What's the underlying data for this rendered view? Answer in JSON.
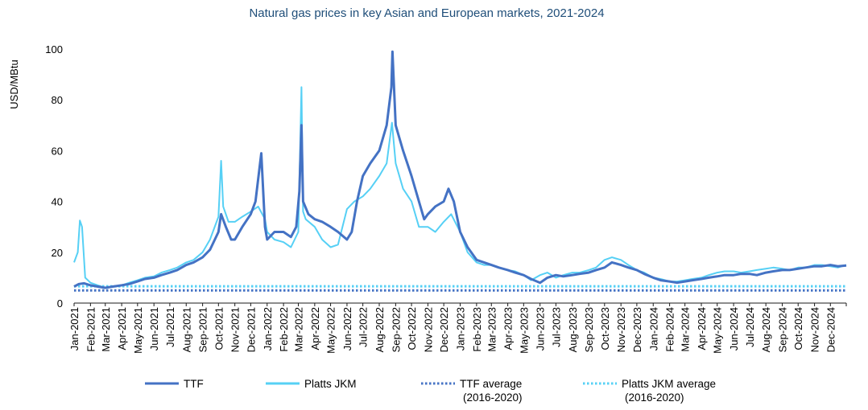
{
  "chart_data": {
    "type": "line",
    "title": "Natural gas prices in key Asian and European markets, 2021-2024",
    "ylabel": "USD/MBtu",
    "xlabel": "",
    "ylim": [
      0,
      100
    ],
    "yticks": [
      0,
      20,
      40,
      60,
      80,
      100
    ],
    "grid": false,
    "legend_position": "bottom",
    "x_tick_labels": [
      "Jan-2021",
      "Feb-2021",
      "Mar-2021",
      "Apr-2021",
      "May-2021",
      "Jun-2021",
      "Jul-2021",
      "Aug-2021",
      "Sep-2021",
      "Oct-2021",
      "Nov-2021",
      "Dec-2021",
      "Jan-2022",
      "Feb-2022",
      "Mar-2022",
      "Apr-2022",
      "May-2022",
      "Jun-2022",
      "Jul-2022",
      "Aug-2022",
      "Sep-2022",
      "Oct-2022",
      "Nov-2022",
      "Dec-2022",
      "Jan-2023",
      "Feb-2023",
      "Mar-2023",
      "Apr-2023",
      "May-2023",
      "Jun-2023",
      "Jul-2023",
      "Aug-2023",
      "Sep-2023",
      "Oct-2023",
      "Nov-2023",
      "Dec-2023",
      "Jan-2024",
      "Feb-2024",
      "Mar-2024",
      "Apr-2024",
      "May-2024",
      "Jun-2024",
      "Jul-2024",
      "Aug-2024",
      "Sep-2024",
      "Oct-2024",
      "Nov-2024",
      "Dec-2024"
    ],
    "series": [
      {
        "name": "TTF",
        "color": "#4472c4",
        "style": "solid",
        "x": [
          "2021-01-01",
          "2021-01-10",
          "2021-01-20",
          "2021-02-01",
          "2021-02-15",
          "2021-03-01",
          "2021-03-15",
          "2021-04-01",
          "2021-04-15",
          "2021-05-01",
          "2021-05-15",
          "2021-06-01",
          "2021-06-15",
          "2021-07-01",
          "2021-07-15",
          "2021-08-01",
          "2021-08-15",
          "2021-09-01",
          "2021-09-15",
          "2021-10-01",
          "2021-10-06",
          "2021-10-15",
          "2021-10-25",
          "2021-11-01",
          "2021-11-15",
          "2021-12-01",
          "2021-12-10",
          "2021-12-21",
          "2021-12-28",
          "2022-01-01",
          "2022-01-15",
          "2022-02-01",
          "2022-02-15",
          "2022-02-25",
          "2022-03-03",
          "2022-03-07",
          "2022-03-10",
          "2022-03-20",
          "2022-04-01",
          "2022-04-15",
          "2022-05-01",
          "2022-05-15",
          "2022-06-01",
          "2022-06-10",
          "2022-06-20",
          "2022-07-01",
          "2022-07-15",
          "2022-08-01",
          "2022-08-15",
          "2022-08-24",
          "2022-08-26",
          "2022-09-01",
          "2022-09-15",
          "2022-10-01",
          "2022-10-15",
          "2022-10-25",
          "2022-11-01",
          "2022-11-15",
          "2022-12-01",
          "2022-12-10",
          "2022-12-20",
          "2023-01-01",
          "2023-01-15",
          "2023-02-01",
          "2023-02-15",
          "2023-03-01",
          "2023-03-15",
          "2023-04-01",
          "2023-04-15",
          "2023-05-01",
          "2023-05-15",
          "2023-06-01",
          "2023-06-15",
          "2023-07-01",
          "2023-07-15",
          "2023-08-01",
          "2023-08-15",
          "2023-09-01",
          "2023-09-15",
          "2023-10-01",
          "2023-10-15",
          "2023-11-01",
          "2023-11-15",
          "2023-12-01",
          "2023-12-15",
          "2024-01-01",
          "2024-01-15",
          "2024-02-01",
          "2024-02-15",
          "2024-03-01",
          "2024-03-15",
          "2024-04-01",
          "2024-04-15",
          "2024-05-01",
          "2024-05-15",
          "2024-06-01",
          "2024-06-15",
          "2024-07-01",
          "2024-07-15",
          "2024-08-01",
          "2024-08-15",
          "2024-09-01",
          "2024-09-15",
          "2024-10-01",
          "2024-10-15",
          "2024-11-01",
          "2024-11-15",
          "2024-12-01",
          "2024-12-15",
          "2024-12-31"
        ],
        "y": [
          6.5,
          7.5,
          7.8,
          7.0,
          6.5,
          6.0,
          6.5,
          7.0,
          7.5,
          8.5,
          9.5,
          10.0,
          11.0,
          12.0,
          13.0,
          15.0,
          16.0,
          18.0,
          21.0,
          28.0,
          35.0,
          30.0,
          25.0,
          25.0,
          30.0,
          35.0,
          40.0,
          59.0,
          30.0,
          25.0,
          28.0,
          28.0,
          26.0,
          30.0,
          44.0,
          70.0,
          40.0,
          35.0,
          33.0,
          32.0,
          30.0,
          28.0,
          25.0,
          28.0,
          40.0,
          50.0,
          55.0,
          60.0,
          70.0,
          85.0,
          99.0,
          70.0,
          60.0,
          50.0,
          40.0,
          33.0,
          35.0,
          38.0,
          40.0,
          45.0,
          40.0,
          28.0,
          22.0,
          17.0,
          16.0,
          15.0,
          14.0,
          13.0,
          12.0,
          11.0,
          9.5,
          8.0,
          10.0,
          11.0,
          10.5,
          11.0,
          11.5,
          12.0,
          13.0,
          14.0,
          16.0,
          15.0,
          14.0,
          13.0,
          11.5,
          10.0,
          9.0,
          8.5,
          8.0,
          8.5,
          9.0,
          9.5,
          10.0,
          10.5,
          11.0,
          11.0,
          11.5,
          11.5,
          11.0,
          12.0,
          12.5,
          13.0,
          13.0,
          13.5,
          14.0,
          14.5,
          14.5,
          15.0,
          14.5,
          14.8
        ]
      },
      {
        "name": "Platts JKM",
        "color": "#56d0f5",
        "style": "solid",
        "x": [
          "2021-01-01",
          "2021-01-08",
          "2021-01-12",
          "2021-01-16",
          "2021-01-22",
          "2021-02-01",
          "2021-02-15",
          "2021-03-01",
          "2021-03-15",
          "2021-04-01",
          "2021-04-15",
          "2021-05-01",
          "2021-05-15",
          "2021-06-01",
          "2021-06-15",
          "2021-07-01",
          "2021-07-15",
          "2021-08-01",
          "2021-08-15",
          "2021-09-01",
          "2021-09-15",
          "2021-10-01",
          "2021-10-06",
          "2021-10-10",
          "2021-10-20",
          "2021-11-01",
          "2021-11-15",
          "2021-12-01",
          "2021-12-15",
          "2021-12-28",
          "2022-01-01",
          "2022-01-15",
          "2022-02-01",
          "2022-02-15",
          "2022-03-01",
          "2022-03-07",
          "2022-03-10",
          "2022-03-15",
          "2022-04-01",
          "2022-04-15",
          "2022-05-01",
          "2022-05-15",
          "2022-06-01",
          "2022-06-15",
          "2022-07-01",
          "2022-07-15",
          "2022-08-01",
          "2022-08-15",
          "2022-08-25",
          "2022-09-01",
          "2022-09-15",
          "2022-10-01",
          "2022-10-15",
          "2022-11-01",
          "2022-11-15",
          "2022-12-01",
          "2022-12-15",
          "2023-01-01",
          "2023-01-15",
          "2023-02-01",
          "2023-02-15",
          "2023-03-01",
          "2023-03-15",
          "2023-04-01",
          "2023-04-15",
          "2023-05-01",
          "2023-05-15",
          "2023-06-01",
          "2023-06-15",
          "2023-07-01",
          "2023-07-15",
          "2023-08-01",
          "2023-08-15",
          "2023-09-01",
          "2023-09-15",
          "2023-10-01",
          "2023-10-15",
          "2023-11-01",
          "2023-11-15",
          "2023-12-01",
          "2023-12-15",
          "2024-01-01",
          "2024-01-15",
          "2024-02-01",
          "2024-02-15",
          "2024-03-01",
          "2024-03-15",
          "2024-04-01",
          "2024-04-15",
          "2024-05-01",
          "2024-05-15",
          "2024-06-01",
          "2024-06-15",
          "2024-07-01",
          "2024-07-15",
          "2024-08-01",
          "2024-08-15",
          "2024-09-01",
          "2024-09-15",
          "2024-10-01",
          "2024-10-15",
          "2024-11-01",
          "2024-11-15",
          "2024-12-01",
          "2024-12-15",
          "2024-12-31"
        ],
        "y": [
          16.0,
          20.0,
          32.5,
          30.0,
          10.0,
          8.0,
          7.0,
          6.0,
          6.5,
          7.0,
          8.0,
          9.0,
          10.0,
          10.5,
          12.0,
          13.0,
          14.0,
          16.0,
          17.0,
          20.0,
          25.0,
          34.0,
          56.0,
          38.0,
          32.0,
          32.0,
          34.0,
          36.0,
          38.0,
          33.0,
          28.0,
          25.0,
          24.0,
          22.0,
          28.0,
          85.0,
          36.0,
          33.0,
          30.0,
          25.0,
          22.0,
          23.0,
          37.0,
          40.0,
          42.0,
          45.0,
          50.0,
          55.0,
          71.0,
          55.0,
          45.0,
          40.0,
          30.0,
          30.0,
          28.0,
          32.0,
          35.0,
          28.0,
          20.0,
          16.0,
          15.0,
          15.0,
          14.0,
          13.0,
          12.5,
          11.0,
          9.0,
          11.0,
          12.0,
          10.0,
          11.0,
          12.0,
          12.0,
          13.0,
          14.0,
          17.0,
          18.0,
          17.0,
          15.0,
          13.0,
          12.0,
          10.0,
          9.5,
          8.5,
          8.5,
          9.0,
          9.5,
          10.0,
          11.0,
          12.0,
          12.5,
          12.5,
          12.0,
          12.5,
          13.0,
          13.5,
          14.0,
          13.5,
          13.0,
          14.0,
          14.0,
          15.0,
          15.0,
          14.5,
          14.0,
          15.0
        ]
      },
      {
        "name": "TTF average\n(2016-2020)",
        "color": "#4472c4",
        "style": "dotted",
        "x": [
          "2021-01-01",
          "2024-12-31"
        ],
        "y": [
          5.0,
          5.0
        ]
      },
      {
        "name": "Platts JKM average\n(2016-2020)",
        "color": "#56d0f5",
        "style": "dotted",
        "x": [
          "2021-01-01",
          "2024-12-31"
        ],
        "y": [
          6.6,
          6.6
        ]
      }
    ]
  },
  "legend": [
    {
      "line1": "TTF",
      "line2": ""
    },
    {
      "line1": "Platts JKM",
      "line2": ""
    },
    {
      "line1": "TTF average",
      "line2": "(2016-2020)"
    },
    {
      "line1": "Platts JKM average",
      "line2": "(2016-2020)"
    }
  ]
}
